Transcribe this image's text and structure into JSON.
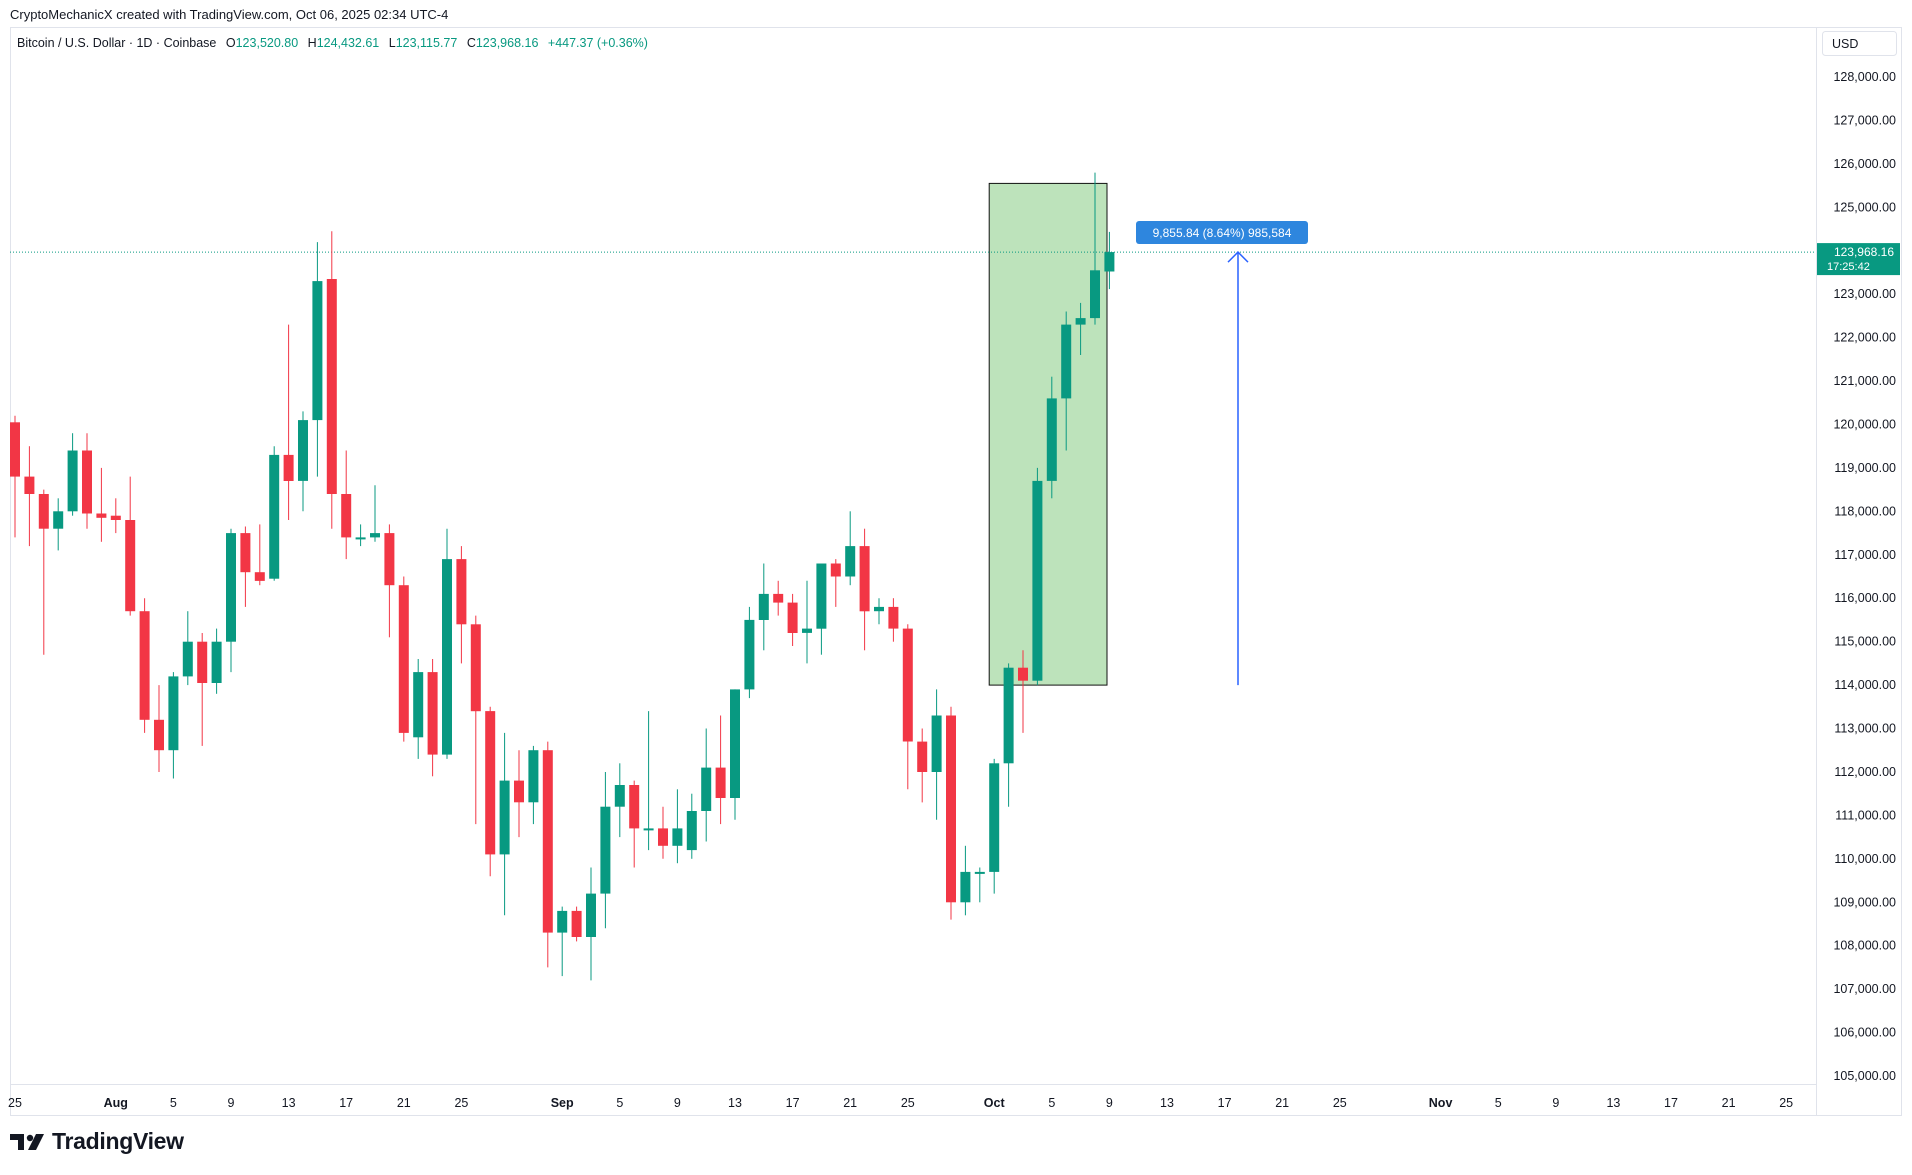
{
  "header": {
    "credit": "CryptoMechanicX created with TradingView.com, Oct 06, 2025 02:34 UTC-4"
  },
  "legend": {
    "symbol": "Bitcoin / U.S. Dollar · 1D · Coinbase",
    "o_label": "O",
    "o_value": "123,520.80",
    "h_label": "H",
    "h_value": "124,432.61",
    "l_label": "L",
    "l_value": "123,115.77",
    "c_label": "C",
    "c_value": "123,968.16",
    "change": "+447.37 (+0.36%)"
  },
  "currency": "USD",
  "last_price": {
    "value": "123,968.16",
    "countdown": "17:25:42"
  },
  "measure_label": "9,855.84 (8.64%) 985,584",
  "brand": "TradingView",
  "colors": {
    "up": "#089981",
    "down": "#F23645",
    "range_fill": "#BDE3BB",
    "measure": "#2962FF",
    "measure_label_bg": "#2E86DE",
    "price_line": "#089981"
  },
  "chart_data": {
    "type": "candlestick",
    "symbol": "BTCUSD",
    "interval": "1D",
    "ylim": [
      104400,
      128800
    ],
    "y_ticks": [
      105000,
      106000,
      107000,
      108000,
      109000,
      110000,
      111000,
      112000,
      113000,
      114000,
      115000,
      116000,
      117000,
      118000,
      119000,
      120000,
      121000,
      122000,
      123000,
      124000,
      125000,
      126000,
      127000,
      128000
    ],
    "y_tick_labels": [
      "105,000.00",
      "106,000.00",
      "107,000.00",
      "108,000.00",
      "109,000.00",
      "110,000.00",
      "111,000.00",
      "112,000.00",
      "113,000.00",
      "114,000.00",
      "115,000.00",
      "116,000.00",
      "117,000.00",
      "118,000.00",
      "119,000.00",
      "120,000.00",
      "121,000.00",
      "122,000.00",
      "123,000.00",
      "124,000.00",
      "125,000.00",
      "126,000.00",
      "127,000.00",
      "128,000.00"
    ],
    "x_ticks": [
      {
        "day": 0,
        "label": "25"
      },
      {
        "day": 7,
        "label": "Aug",
        "bold": true
      },
      {
        "day": 11,
        "label": "5"
      },
      {
        "day": 15,
        "label": "9"
      },
      {
        "day": 19,
        "label": "13"
      },
      {
        "day": 23,
        "label": "17"
      },
      {
        "day": 27,
        "label": "21"
      },
      {
        "day": 31,
        "label": "25"
      },
      {
        "day": 38,
        "label": "Sep",
        "bold": true
      },
      {
        "day": 42,
        "label": "5"
      },
      {
        "day": 46,
        "label": "9"
      },
      {
        "day": 50,
        "label": "13"
      },
      {
        "day": 54,
        "label": "17"
      },
      {
        "day": 58,
        "label": "21"
      },
      {
        "day": 62,
        "label": "25"
      },
      {
        "day": 68,
        "label": "Oct",
        "bold": true
      },
      {
        "day": 72,
        "label": "5"
      },
      {
        "day": 76,
        "label": "9"
      },
      {
        "day": 80,
        "label": "13"
      },
      {
        "day": 84,
        "label": "17"
      },
      {
        "day": 88,
        "label": "21"
      },
      {
        "day": 92,
        "label": "25"
      },
      {
        "day": 99,
        "label": "Nov",
        "bold": true
      },
      {
        "day": 103,
        "label": "5"
      },
      {
        "day": 107,
        "label": "9"
      },
      {
        "day": 111,
        "label": "13"
      },
      {
        "day": 115,
        "label": "17"
      },
      {
        "day": 119,
        "label": "21"
      },
      {
        "day": 123,
        "label": "25"
      }
    ],
    "candles": [
      {
        "o": 120050,
        "h": 120200,
        "l": 117400,
        "c": 118800
      },
      {
        "o": 118800,
        "h": 119500,
        "l": 117200,
        "c": 118400
      },
      {
        "o": 118400,
        "h": 118500,
        "l": 114700,
        "c": 117600
      },
      {
        "o": 117600,
        "h": 118300,
        "l": 117100,
        "c": 118000
      },
      {
        "o": 118000,
        "h": 119800,
        "l": 117900,
        "c": 119400
      },
      {
        "o": 119400,
        "h": 119800,
        "l": 117600,
        "c": 117950
      },
      {
        "o": 117950,
        "h": 119000,
        "l": 117300,
        "c": 117850
      },
      {
        "o": 117900,
        "h": 118300,
        "l": 117500,
        "c": 117800
      },
      {
        "o": 117800,
        "h": 118800,
        "l": 115600,
        "c": 115700
      },
      {
        "o": 115700,
        "h": 116000,
        "l": 112900,
        "c": 113200
      },
      {
        "o": 113200,
        "h": 114000,
        "l": 112000,
        "c": 112500
      },
      {
        "o": 112500,
        "h": 114300,
        "l": 111850,
        "c": 114200
      },
      {
        "o": 114200,
        "h": 115700,
        "l": 114000,
        "c": 115000
      },
      {
        "o": 115000,
        "h": 115200,
        "l": 112600,
        "c": 114050
      },
      {
        "o": 114050,
        "h": 115300,
        "l": 113800,
        "c": 115000
      },
      {
        "o": 115000,
        "h": 117600,
        "l": 114300,
        "c": 117500
      },
      {
        "o": 117500,
        "h": 117650,
        "l": 115800,
        "c": 116600
      },
      {
        "o": 116600,
        "h": 117700,
        "l": 116300,
        "c": 116400
      },
      {
        "o": 116450,
        "h": 119500,
        "l": 116400,
        "c": 119300
      },
      {
        "o": 119300,
        "h": 122300,
        "l": 117800,
        "c": 118700
      },
      {
        "o": 118700,
        "h": 120300,
        "l": 118000,
        "c": 120100
      },
      {
        "o": 120100,
        "h": 124200,
        "l": 118800,
        "c": 123300
      },
      {
        "o": 123350,
        "h": 124450,
        "l": 117600,
        "c": 118400
      },
      {
        "o": 118400,
        "h": 119400,
        "l": 116900,
        "c": 117400
      },
      {
        "o": 117400,
        "h": 117700,
        "l": 117200,
        "c": 117400
      },
      {
        "o": 117400,
        "h": 118600,
        "l": 117300,
        "c": 117500
      },
      {
        "o": 117500,
        "h": 117700,
        "l": 115100,
        "c": 116300
      },
      {
        "o": 116300,
        "h": 116500,
        "l": 112700,
        "c": 112900
      },
      {
        "o": 112800,
        "h": 114600,
        "l": 112300,
        "c": 114300
      },
      {
        "o": 114300,
        "h": 114600,
        "l": 111900,
        "c": 112400
      },
      {
        "o": 112400,
        "h": 117600,
        "l": 112300,
        "c": 116900
      },
      {
        "o": 116900,
        "h": 117200,
        "l": 114500,
        "c": 115400
      },
      {
        "o": 115400,
        "h": 115600,
        "l": 110800,
        "c": 113400
      },
      {
        "o": 113400,
        "h": 113500,
        "l": 109600,
        "c": 110100
      },
      {
        "o": 110100,
        "h": 112900,
        "l": 108700,
        "c": 111800
      },
      {
        "o": 111800,
        "h": 112500,
        "l": 110500,
        "c": 111300
      },
      {
        "o": 111300,
        "h": 112600,
        "l": 110800,
        "c": 112500
      },
      {
        "o": 112500,
        "h": 112700,
        "l": 107500,
        "c": 108300
      },
      {
        "o": 108300,
        "h": 108900,
        "l": 107300,
        "c": 108800
      },
      {
        "o": 108800,
        "h": 108900,
        "l": 108100,
        "c": 108200
      },
      {
        "o": 108200,
        "h": 109800,
        "l": 107200,
        "c": 109200
      },
      {
        "o": 109200,
        "h": 112000,
        "l": 108400,
        "c": 111200
      },
      {
        "o": 111200,
        "h": 112200,
        "l": 110500,
        "c": 111700
      },
      {
        "o": 111700,
        "h": 111800,
        "l": 109800,
        "c": 110700
      },
      {
        "o": 110700,
        "h": 113400,
        "l": 110200,
        "c": 110700
      },
      {
        "o": 110700,
        "h": 111200,
        "l": 110000,
        "c": 110300
      },
      {
        "o": 110300,
        "h": 111600,
        "l": 109900,
        "c": 110700
      },
      {
        "o": 110200,
        "h": 111500,
        "l": 110000,
        "c": 111100
      },
      {
        "o": 111100,
        "h": 113000,
        "l": 110400,
        "c": 112100
      },
      {
        "o": 112100,
        "h": 113300,
        "l": 110800,
        "c": 111400
      },
      {
        "o": 111400,
        "h": 113900,
        "l": 110900,
        "c": 113900
      },
      {
        "o": 113900,
        "h": 115800,
        "l": 113700,
        "c": 115500
      },
      {
        "o": 115500,
        "h": 116800,
        "l": 114800,
        "c": 116100
      },
      {
        "o": 116100,
        "h": 116400,
        "l": 115600,
        "c": 115900
      },
      {
        "o": 115900,
        "h": 116100,
        "l": 114900,
        "c": 115200
      },
      {
        "o": 115200,
        "h": 116400,
        "l": 114500,
        "c": 115300
      },
      {
        "o": 115300,
        "h": 116800,
        "l": 114700,
        "c": 116800
      },
      {
        "o": 116800,
        "h": 116900,
        "l": 115800,
        "c": 116500
      },
      {
        "o": 116500,
        "h": 118000,
        "l": 116300,
        "c": 117200
      },
      {
        "o": 117200,
        "h": 117600,
        "l": 114800,
        "c": 115700
      },
      {
        "o": 115700,
        "h": 116000,
        "l": 115400,
        "c": 115800
      },
      {
        "o": 115800,
        "h": 116000,
        "l": 115000,
        "c": 115300
      },
      {
        "o": 115300,
        "h": 115400,
        "l": 111600,
        "c": 112700
      },
      {
        "o": 112700,
        "h": 113000,
        "l": 111300,
        "c": 112000
      },
      {
        "o": 112000,
        "h": 113900,
        "l": 110900,
        "c": 113300
      },
      {
        "o": 113300,
        "h": 113500,
        "l": 108600,
        "c": 109000
      },
      {
        "o": 109000,
        "h": 110300,
        "l": 108700,
        "c": 109700
      },
      {
        "o": 109700,
        "h": 109800,
        "l": 109000,
        "c": 109700
      },
      {
        "o": 109700,
        "h": 112300,
        "l": 109200,
        "c": 112200
      },
      {
        "o": 112200,
        "h": 114500,
        "l": 111200,
        "c": 114400
      },
      {
        "o": 114400,
        "h": 114800,
        "l": 112900,
        "c": 114100
      },
      {
        "o": 114100,
        "h": 119000,
        "l": 114000,
        "c": 118700
      },
      {
        "o": 118700,
        "h": 121100,
        "l": 118300,
        "c": 120600
      },
      {
        "o": 120600,
        "h": 122600,
        "l": 119400,
        "c": 122300
      },
      {
        "o": 122300,
        "h": 122800,
        "l": 121600,
        "c": 122450
      },
      {
        "o": 122450,
        "h": 125800,
        "l": 122300,
        "c": 123550
      },
      {
        "o": 123520.8,
        "h": 124432.61,
        "l": 123115.77,
        "c": 123968.16
      }
    ],
    "last_price": 123968.16,
    "range_box": {
      "from_day": 68,
      "to_day": 75,
      "top": 125550,
      "bottom": 114000
    },
    "measure_arrow": {
      "day": 80,
      "from": 114000,
      "to": 123968.16
    }
  }
}
